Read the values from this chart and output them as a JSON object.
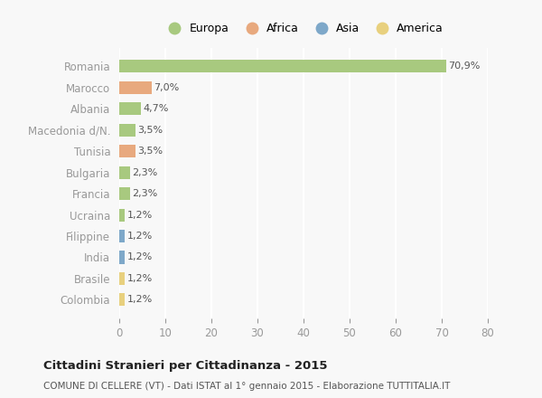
{
  "countries": [
    "Romania",
    "Marocco",
    "Albania",
    "Macedonia d/N.",
    "Tunisia",
    "Bulgaria",
    "Francia",
    "Ucraina",
    "Filippine",
    "India",
    "Brasile",
    "Colombia"
  ],
  "values": [
    70.9,
    7.0,
    4.7,
    3.5,
    3.5,
    2.3,
    2.3,
    1.2,
    1.2,
    1.2,
    1.2,
    1.2
  ],
  "labels": [
    "70,9%",
    "7,0%",
    "4,7%",
    "3,5%",
    "3,5%",
    "2,3%",
    "2,3%",
    "1,2%",
    "1,2%",
    "1,2%",
    "1,2%",
    "1,2%"
  ],
  "continents": [
    "Europa",
    "Africa",
    "Europa",
    "Europa",
    "Africa",
    "Europa",
    "Europa",
    "Europa",
    "Asia",
    "Asia",
    "America",
    "America"
  ],
  "colors": {
    "Europa": "#a8c97f",
    "Africa": "#e8a97e",
    "Asia": "#7ea8c9",
    "America": "#e8d07e"
  },
  "legend_order": [
    "Europa",
    "Africa",
    "Asia",
    "America"
  ],
  "xlim": [
    0,
    80
  ],
  "xticks": [
    0,
    10,
    20,
    30,
    40,
    50,
    60,
    70,
    80
  ],
  "title": "Cittadini Stranieri per Cittadinanza - 2015",
  "subtitle": "COMUNE DI CELLERE (VT) - Dati ISTAT al 1° gennaio 2015 - Elaborazione TUTTITALIA.IT",
  "background_color": "#f8f8f8",
  "grid_color": "#ffffff",
  "bar_height": 0.6
}
